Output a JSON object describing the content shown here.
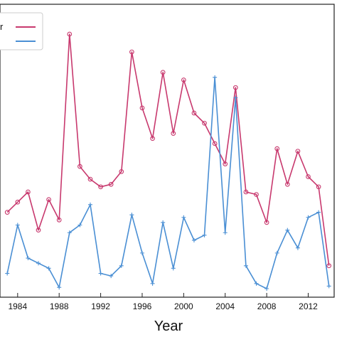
{
  "chart_data": {
    "type": "line",
    "xlabel": "Year",
    "ylabel": "",
    "title": "",
    "x_ticks": [
      1984,
      1988,
      1992,
      1996,
      2000,
      2004,
      2008,
      2012
    ],
    "xlim": [
      1982.3,
      2014.5
    ],
    "ylim": [
      0,
      100
    ],
    "grid": false,
    "legend_position": "top-left",
    "series": [
      {
        "legend_text": "r",
        "color": "#c8396e",
        "marker": "circle",
        "points": [
          [
            1983,
            30
          ],
          [
            1984,
            34
          ],
          [
            1985,
            38
          ],
          [
            1986,
            23
          ],
          [
            1987,
            35
          ],
          [
            1988,
            27
          ],
          [
            1989,
            100
          ],
          [
            1990,
            48
          ],
          [
            1991,
            43
          ],
          [
            1992,
            40
          ],
          [
            1993,
            41
          ],
          [
            1994,
            46
          ],
          [
            1995,
            93
          ],
          [
            1996,
            71
          ],
          [
            1997,
            59
          ],
          [
            1998,
            85
          ],
          [
            1999,
            61
          ],
          [
            2000,
            82
          ],
          [
            2001,
            69
          ],
          [
            2002,
            65
          ],
          [
            2003,
            57
          ],
          [
            2004,
            49
          ],
          [
            2005,
            79
          ],
          [
            2006,
            38
          ],
          [
            2007,
            37
          ],
          [
            2008,
            26
          ],
          [
            2009,
            55
          ],
          [
            2010,
            41
          ],
          [
            2011,
            54
          ],
          [
            2012,
            44
          ],
          [
            2013,
            40
          ],
          [
            2014,
            9
          ]
        ]
      },
      {
        "legend_text": "",
        "color": "#4a8fd4",
        "marker": "plus",
        "points": [
          [
            1983,
            6
          ],
          [
            1984,
            25
          ],
          [
            1985,
            12
          ],
          [
            1986,
            10
          ],
          [
            1987,
            8
          ],
          [
            1988,
            0.5
          ],
          [
            1989,
            22
          ],
          [
            1990,
            25
          ],
          [
            1991,
            33
          ],
          [
            1992,
            6
          ],
          [
            1993,
            5
          ],
          [
            1994,
            9
          ],
          [
            1995,
            29
          ],
          [
            1996,
            14
          ],
          [
            1997,
            2
          ],
          [
            1998,
            26
          ],
          [
            1999,
            8
          ],
          [
            2000,
            28
          ],
          [
            2001,
            19
          ],
          [
            2002,
            21
          ],
          [
            2003,
            83
          ],
          [
            2004,
            22
          ],
          [
            2005,
            75
          ],
          [
            2006,
            9
          ],
          [
            2007,
            2
          ],
          [
            2008,
            0
          ],
          [
            2009,
            14
          ],
          [
            2010,
            23
          ],
          [
            2011,
            16
          ],
          [
            2012,
            28
          ],
          [
            2013,
            30
          ],
          [
            2014,
            1
          ]
        ]
      }
    ]
  }
}
